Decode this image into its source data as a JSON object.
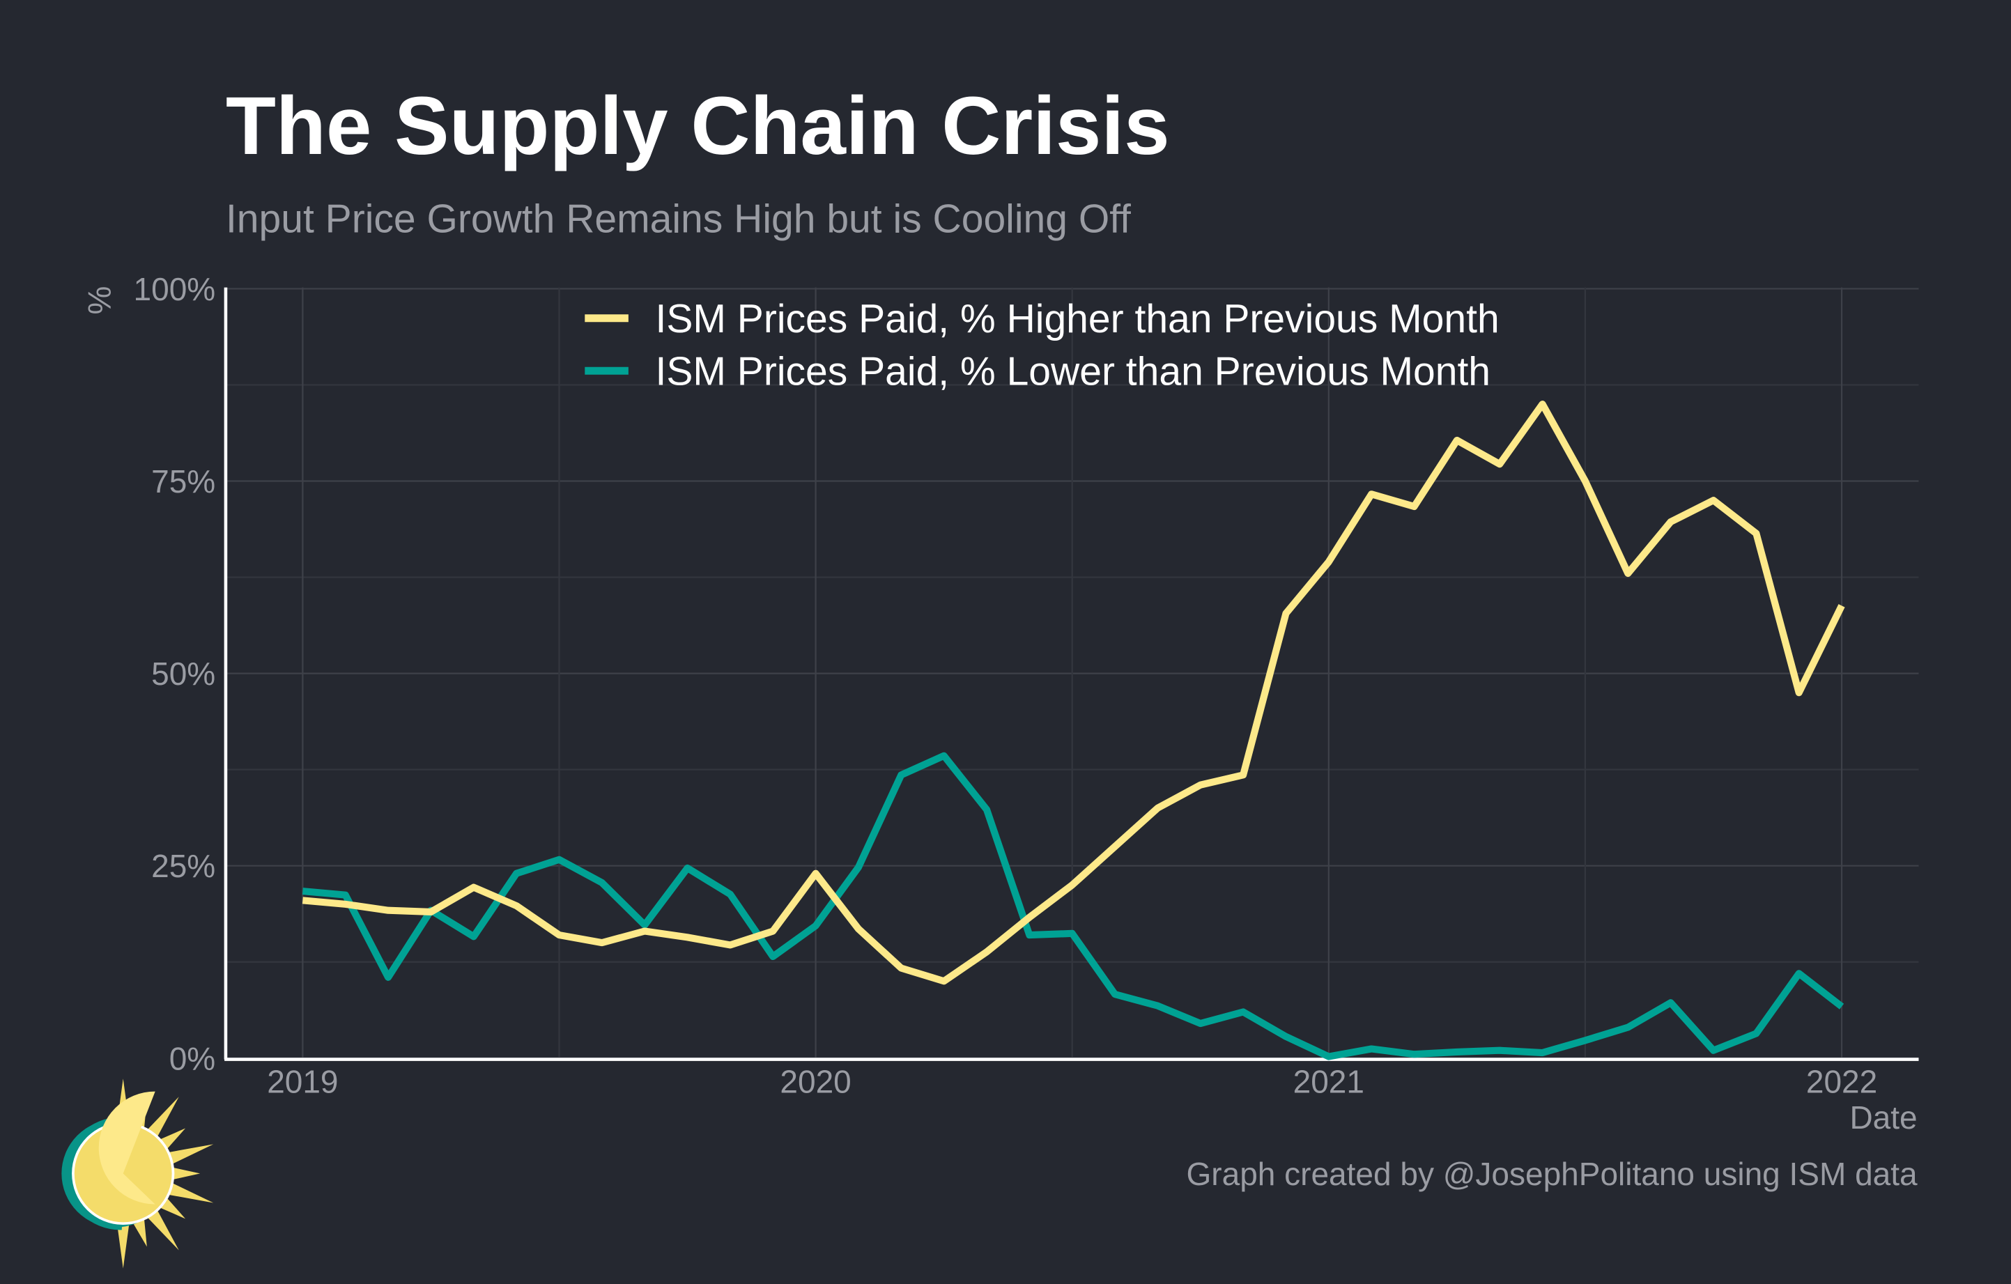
{
  "title": "The Supply Chain Crisis",
  "subtitle": "Input Price Growth Remains High but is Cooling Off",
  "caption": "Graph created by @JosephPolitano using ISM data",
  "colors": {
    "background": "#252830",
    "higher": "#fde98a",
    "lower": "#00a294",
    "axis": "#ffffff",
    "grid": "#3e4149"
  },
  "logo": {
    "icon": "sun-logo-icon"
  },
  "chart_data": {
    "type": "line",
    "title": "The Supply Chain Crisis",
    "subtitle": "Input Price Growth Remains High but is Cooling Off",
    "xlabel": "Date",
    "ylabel": "%",
    "xlim": [
      "2018-10",
      "2022-02"
    ],
    "ylim": [
      0,
      100
    ],
    "x_ticks": [
      "2019",
      "2020",
      "2021",
      "2022"
    ],
    "y_ticks": [
      "0%",
      "25%",
      "50%",
      "75%",
      "100%"
    ],
    "grid": true,
    "legend_position": "top-center",
    "x": [
      "2019-01",
      "2019-02",
      "2019-03",
      "2019-04",
      "2019-05",
      "2019-06",
      "2019-07",
      "2019-08",
      "2019-09",
      "2019-10",
      "2019-11",
      "2019-12",
      "2020-01",
      "2020-02",
      "2020-03",
      "2020-04",
      "2020-05",
      "2020-06",
      "2020-07",
      "2020-08",
      "2020-09",
      "2020-10",
      "2020-11",
      "2020-12",
      "2021-01",
      "2021-02",
      "2021-03",
      "2021-04",
      "2021-05",
      "2021-06",
      "2021-07",
      "2021-08",
      "2021-09",
      "2021-10",
      "2021-11",
      "2021-12",
      "2022-01"
    ],
    "series": [
      {
        "name": "ISM Prices Paid, % Higher than Previous Month",
        "color": "#fde98a",
        "values": [
          20.5,
          20,
          19.2,
          19,
          22.2,
          19.8,
          16,
          15,
          16.5,
          15.7,
          14.7,
          16.5,
          24,
          16.8,
          11.7,
          10,
          13.8,
          18.3,
          22.5,
          27.5,
          32.5,
          35.5,
          36.8,
          57.8,
          64.5,
          73.3,
          71.7,
          80.3,
          77.2,
          85,
          75,
          63,
          69.7,
          72.5,
          68.2,
          47.5,
          58.8
        ]
      },
      {
        "name": "ISM Prices Paid, % Lower than Previous Month",
        "color": "#00a294",
        "values": [
          21.7,
          21.2,
          10.5,
          19.2,
          15.8,
          24,
          25.8,
          22.8,
          17.3,
          24.7,
          21.3,
          13.2,
          17.2,
          24.8,
          36.8,
          39.3,
          32.3,
          16,
          16.2,
          8.3,
          6.8,
          4.5,
          6,
          2.8,
          0.2,
          1.2,
          0.5,
          0.8,
          1,
          0.7,
          2.3,
          4,
          7.2,
          1,
          3.2,
          11,
          6.7
        ]
      }
    ]
  }
}
